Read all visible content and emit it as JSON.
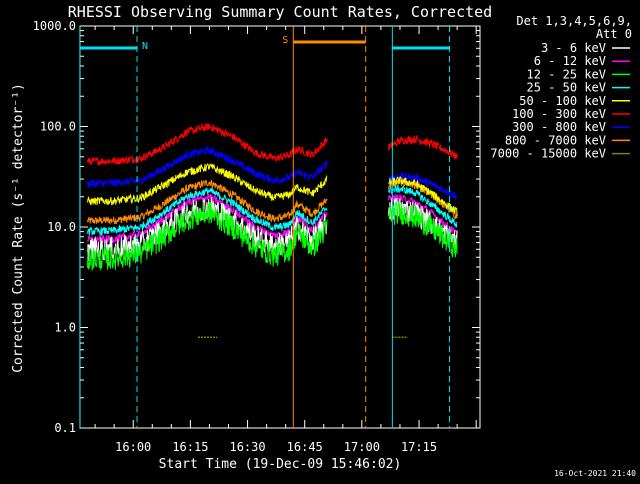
{
  "chart_data": {
    "type": "line",
    "title": "RHESSI Observing Summary Count Rates, Corrected",
    "xlabel": "Start Time (19-Dec-09 15:46:02)",
    "ylabel": "Corrected Count Rate (s⁻¹ detector⁻¹)",
    "y_scale": "log",
    "ylim": [
      0.1,
      1000.0
    ],
    "xlim": [
      "15:46:02",
      "17:31:00"
    ],
    "x_ticks": [
      "16:00",
      "16:15",
      "16:30",
      "16:45",
      "17:00",
      "17:15"
    ],
    "y_ticks": [
      "0.1",
      "1.0",
      "10.0",
      "100.0",
      "1000.0"
    ],
    "legend": {
      "placement": "top-right",
      "header": [
        "Det 1,3,4,5,6,9,",
        "Att 0"
      ]
    },
    "series": [
      {
        "name": "3 - 6 keV",
        "color": "#ffffff",
        "x": [
          "15:48",
          "15:55",
          "16:02",
          "16:08",
          "16:14",
          "16:20",
          "16:26",
          "16:32",
          "16:37",
          "16:41",
          "16:43",
          "16:47",
          "16:51"
        ],
        "values": [
          6.0,
          6.1,
          6.8,
          9.5,
          14.0,
          16.0,
          12.0,
          8.0,
          6.5,
          7.2,
          10.0,
          7.5,
          11.0
        ]
      },
      {
        "name": "6 - 12 keV",
        "color": "#ff00ff",
        "x": [
          "15:48",
          "15:55",
          "16:02",
          "16:08",
          "16:14",
          "16:20",
          "16:26",
          "16:32",
          "16:37",
          "16:41",
          "16:43",
          "16:47",
          "16:51"
        ],
        "values": [
          7.5,
          7.6,
          8.5,
          12.0,
          17.5,
          20.0,
          15.0,
          10.0,
          8.2,
          9.0,
          12.5,
          9.4,
          14.0
        ]
      },
      {
        "name": "12 - 25 keV",
        "color": "#00ff00",
        "x": [
          "15:48",
          "15:55",
          "16:02",
          "16:08",
          "16:14",
          "16:20",
          "16:26",
          "16:32",
          "16:37",
          "16:41",
          "16:43",
          "16:47",
          "16:51"
        ],
        "values": [
          4.8,
          4.9,
          5.5,
          8.0,
          12.0,
          14.0,
          10.0,
          6.5,
          5.2,
          6.0,
          9.0,
          6.2,
          10.0
        ]
      },
      {
        "name": "25 - 50 keV",
        "color": "#00ffff",
        "x": [
          "15:48",
          "15:55",
          "16:02",
          "16:08",
          "16:14",
          "16:20",
          "16:26",
          "16:32",
          "16:37",
          "16:41",
          "16:43",
          "16:47",
          "16:51"
        ],
        "values": [
          9.0,
          9.2,
          10.0,
          14.0,
          20.0,
          23.0,
          17.5,
          12.0,
          9.8,
          10.5,
          14.0,
          11.0,
          16.0
        ]
      },
      {
        "name": "50 - 100 keV",
        "color": "#ffff00",
        "x": [
          "15:48",
          "15:55",
          "16:02",
          "16:08",
          "16:14",
          "16:20",
          "16:26",
          "16:32",
          "16:37",
          "16:41",
          "16:43",
          "16:47",
          "16:51"
        ],
        "values": [
          18.0,
          18.2,
          19.5,
          26.0,
          35.0,
          40.0,
          32.0,
          23.0,
          19.5,
          21.0,
          25.0,
          21.5,
          30.0
        ]
      },
      {
        "name": "100 - 300 keV",
        "color": "#ff0000",
        "x": [
          "15:48",
          "15:55",
          "16:02",
          "16:08",
          "16:14",
          "16:20",
          "16:26",
          "16:32",
          "16:37",
          "16:41",
          "16:43",
          "16:47",
          "16:51"
        ],
        "values": [
          45.0,
          45.5,
          48.0,
          62.0,
          88.0,
          100.0,
          80.0,
          55.0,
          48.0,
          52.0,
          60.0,
          52.0,
          75.0
        ]
      },
      {
        "name": "300 - 800 keV",
        "color": "#0000ff",
        "x": [
          "15:48",
          "15:55",
          "16:02",
          "16:08",
          "16:14",
          "16:20",
          "16:26",
          "16:32",
          "16:37",
          "16:41",
          "16:43",
          "16:47",
          "16:51"
        ],
        "values": [
          27.0,
          27.5,
          29.0,
          38.0,
          52.0,
          58.0,
          46.0,
          34.0,
          29.0,
          31.0,
          35.0,
          31.0,
          44.0
        ]
      },
      {
        "name": "800 - 7000 keV",
        "color": "#ff8c00",
        "x": [
          "15:48",
          "15:55",
          "16:02",
          "16:08",
          "16:14",
          "16:20",
          "16:26",
          "16:32",
          "16:37",
          "16:41",
          "16:43",
          "16:47",
          "16:51"
        ],
        "values": [
          11.5,
          11.7,
          12.5,
          17.0,
          24.0,
          28.0,
          21.0,
          14.5,
          12.0,
          13.0,
          17.0,
          13.5,
          19.0
        ]
      },
      {
        "name": "7000 - 15000 keV",
        "color": "#808000",
        "x": [
          "16:17",
          "16:22",
          "17:08",
          "17:12"
        ],
        "values": [
          0.8,
          0.8,
          0.8,
          0.8
        ]
      }
    ],
    "series_segment_2_x": [
      "17:07",
      "17:10",
      "17:14",
      "17:18",
      "17:22",
      "17:25"
    ],
    "series_segment_2_values": {
      "3 - 6 keV": [
        15.0,
        15.5,
        14.0,
        11.0,
        8.5,
        7.0
      ],
      "6 - 12 keV": [
        19.0,
        19.5,
        17.5,
        14.0,
        10.5,
        8.5
      ],
      "12 - 25 keV": [
        13.5,
        14.0,
        12.5,
        10.0,
        7.5,
        6.0
      ],
      "25 - 50 keV": [
        23.0,
        24.0,
        22.0,
        17.0,
        13.0,
        10.5
      ],
      "50 - 100 keV": [
        28.0,
        29.0,
        27.0,
        22.0,
        17.0,
        14.0
      ],
      "100 - 300 keV": [
        62.0,
        72.0,
        75.0,
        68.0,
        58.0,
        50.0
      ],
      "300 - 800 keV": [
        31.0,
        32.0,
        31.0,
        27.0,
        23.0,
        20.0
      ],
      "800 - 7000 keV": [
        26.0,
        28.0,
        26.0,
        21.0,
        16.0,
        12.5
      ]
    },
    "annotations": [
      {
        "label": "N",
        "kind": "night",
        "color": "#00e5ee",
        "x_start": "15:46",
        "x_end": "16:01"
      },
      {
        "label": "",
        "kind": "night",
        "color": "#00e5ee",
        "x_start": "17:08",
        "x_end": "17:23"
      },
      {
        "label": "S",
        "kind": "saa",
        "color": "#ff8c00",
        "x_start": "16:42",
        "x_end": "17:01"
      }
    ],
    "timestamp": "16-Oct-2021 21:40"
  }
}
